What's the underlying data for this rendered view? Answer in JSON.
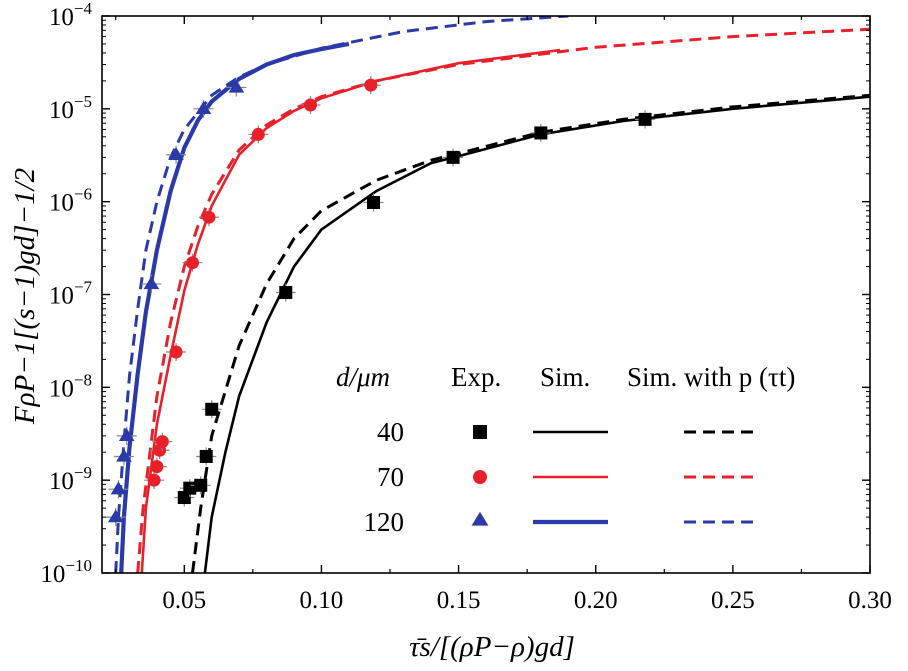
{
  "chart_data": {
    "type": "scatter",
    "title": "",
    "xlabel": "τ̄s/[(ρP−ρ)gd]",
    "ylabel": "FρP−1[(s−1)gd]−1/2",
    "xlim": [
      0.02,
      0.3
    ],
    "ylim": [
      1e-10,
      0.0001
    ],
    "yscale": "log",
    "grid": false,
    "legend_position": "bottom-right",
    "x_ticks": [
      "0.05",
      "0.10",
      "0.15",
      "0.20",
      "0.25",
      "0.30"
    ],
    "y_ticks": [
      {
        "base": "10",
        "exp": "−4"
      },
      {
        "base": "10",
        "exp": "−5"
      },
      {
        "base": "10",
        "exp": "−6"
      },
      {
        "base": "10",
        "exp": "−7"
      },
      {
        "base": "10",
        "exp": "−8"
      },
      {
        "base": "10",
        "exp": "−9"
      },
      {
        "base": "10",
        "exp": "−10"
      }
    ],
    "legend": {
      "header_d": "d/μm",
      "header_exp": "Exp.",
      "header_sim": "Sim.",
      "header_simp": "Sim. with p (τt)",
      "rows": [
        {
          "label": "40",
          "color": "#000000",
          "marker": "square"
        },
        {
          "label": "70",
          "color": "#e8202a",
          "marker": "circle"
        },
        {
          "label": "120",
          "color": "#2a3aa8",
          "marker": "triangle"
        }
      ]
    },
    "series": [
      {
        "group": "40",
        "color": "#000000",
        "marker": "square",
        "points": [
          [
            0.05,
            6.5e-10
          ],
          [
            0.052,
            8.2e-10
          ],
          [
            0.056,
            8.8e-10
          ],
          [
            0.058,
            1.8e-09
          ],
          [
            0.06,
            5.8e-09
          ],
          [
            0.087,
            1.05e-07
          ],
          [
            0.119,
            9.8e-07
          ],
          [
            0.148,
            3e-06
          ],
          [
            0.18,
            5.5e-06
          ],
          [
            0.218,
            7.7e-06
          ]
        ],
        "sim": [
          [
            0.0575,
            1e-10
          ],
          [
            0.06,
            4e-10
          ],
          [
            0.065,
            2e-09
          ],
          [
            0.07,
            8e-09
          ],
          [
            0.08,
            5e-08
          ],
          [
            0.09,
            2e-07
          ],
          [
            0.1,
            5e-07
          ],
          [
            0.12,
            1.3e-06
          ],
          [
            0.14,
            2.6e-06
          ],
          [
            0.15,
            3.1e-06
          ],
          [
            0.18,
            5.3e-06
          ],
          [
            0.21,
            7.4e-06
          ],
          [
            0.25,
            1e-05
          ],
          [
            0.3,
            1.35e-05
          ]
        ],
        "simp": [
          [
            0.053,
            1e-10
          ],
          [
            0.056,
            5e-10
          ],
          [
            0.06,
            3e-09
          ],
          [
            0.07,
            2.8e-08
          ],
          [
            0.08,
            1.3e-07
          ],
          [
            0.09,
            4e-07
          ],
          [
            0.1,
            8e-07
          ],
          [
            0.12,
            1.7e-06
          ],
          [
            0.14,
            2.8e-06
          ],
          [
            0.15,
            3.3e-06
          ],
          [
            0.18,
            5.6e-06
          ],
          [
            0.21,
            7.7e-06
          ],
          [
            0.25,
            1.05e-05
          ],
          [
            0.3,
            1.4e-05
          ]
        ]
      },
      {
        "group": "70",
        "color": "#e8202a",
        "marker": "circle",
        "points": [
          [
            0.039,
            1e-09
          ],
          [
            0.04,
            1.4e-09
          ],
          [
            0.041,
            2.1e-09
          ],
          [
            0.042,
            2.6e-09
          ],
          [
            0.047,
            2.4e-08
          ],
          [
            0.053,
            2.2e-07
          ],
          [
            0.059,
            6.8e-07
          ],
          [
            0.077,
            5.3e-06
          ],
          [
            0.096,
            1.1e-05
          ],
          [
            0.118,
            1.8e-05
          ]
        ],
        "sim": [
          [
            0.0345,
            1e-10
          ],
          [
            0.036,
            5e-10
          ],
          [
            0.04,
            4e-09
          ],
          [
            0.045,
            2.2e-08
          ],
          [
            0.05,
            1.1e-07
          ],
          [
            0.055,
            3.5e-07
          ],
          [
            0.06,
            9e-07
          ],
          [
            0.07,
            3.2e-06
          ],
          [
            0.08,
            6.2e-06
          ],
          [
            0.09,
            9.5e-06
          ],
          [
            0.1,
            1.3e-05
          ],
          [
            0.12,
            2e-05
          ],
          [
            0.15,
            3.1e-05
          ],
          [
            0.187,
            4.3e-05
          ]
        ],
        "simp": [
          [
            0.033,
            1e-10
          ],
          [
            0.035,
            5e-10
          ],
          [
            0.04,
            8e-09
          ],
          [
            0.045,
            5e-08
          ],
          [
            0.05,
            2e-07
          ],
          [
            0.055,
            5.5e-07
          ],
          [
            0.06,
            1.2e-06
          ],
          [
            0.07,
            3.6e-06
          ],
          [
            0.08,
            6.7e-06
          ],
          [
            0.09,
            1e-05
          ],
          [
            0.1,
            1.35e-05
          ],
          [
            0.12,
            2e-05
          ],
          [
            0.15,
            3e-05
          ],
          [
            0.2,
            4.6e-05
          ],
          [
            0.25,
            6e-05
          ],
          [
            0.3,
            7.2e-05
          ]
        ]
      },
      {
        "group": "120",
        "color": "#2a3aa8",
        "marker": "triangle",
        "points": [
          [
            0.025,
            4e-10
          ],
          [
            0.026,
            8e-10
          ],
          [
            0.028,
            1.8e-09
          ],
          [
            0.029,
            3e-09
          ],
          [
            0.038,
            1.3e-07
          ],
          [
            0.047,
            3.2e-06
          ],
          [
            0.057,
            1e-05
          ],
          [
            0.069,
            1.7e-05
          ]
        ],
        "sim": [
          [
            0.027,
            1e-10
          ],
          [
            0.028,
            4e-10
          ],
          [
            0.03,
            2.2e-09
          ],
          [
            0.033,
            1.4e-08
          ],
          [
            0.036,
            6.5e-08
          ],
          [
            0.04,
            3e-07
          ],
          [
            0.045,
            1.3e-06
          ],
          [
            0.05,
            3.8e-06
          ],
          [
            0.055,
            7.5e-06
          ],
          [
            0.06,
            1.2e-05
          ],
          [
            0.07,
            2.1e-05
          ],
          [
            0.08,
            3e-05
          ],
          [
            0.09,
            3.8e-05
          ],
          [
            0.1,
            4.4e-05
          ],
          [
            0.11,
            5e-05
          ]
        ],
        "simp": [
          [
            0.025,
            1e-10
          ],
          [
            0.026,
            4e-10
          ],
          [
            0.028,
            2.5e-09
          ],
          [
            0.03,
            1.3e-08
          ],
          [
            0.033,
            7e-08
          ],
          [
            0.036,
            3e-07
          ],
          [
            0.04,
            1e-06
          ],
          [
            0.045,
            3e-06
          ],
          [
            0.05,
            6e-06
          ],
          [
            0.06,
            1.4e-05
          ],
          [
            0.07,
            2.2e-05
          ],
          [
            0.08,
            3e-05
          ],
          [
            0.1,
            4.5e-05
          ],
          [
            0.13,
            6.8e-05
          ],
          [
            0.16,
            8.7e-05
          ],
          [
            0.19,
            0.0001
          ]
        ]
      }
    ]
  }
}
